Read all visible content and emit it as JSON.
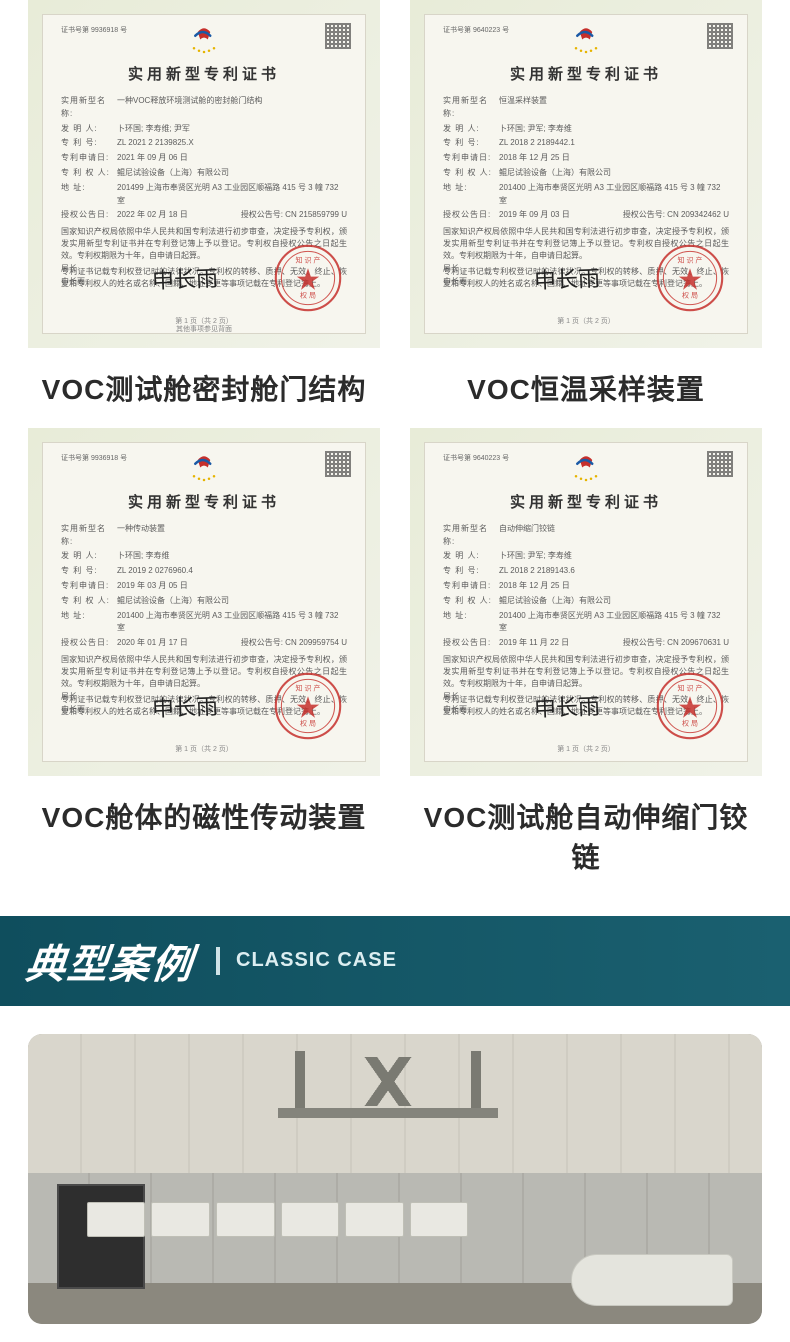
{
  "certs": [
    {
      "serial": "证书号第 9936918 号",
      "title": "实用新型专利证书",
      "name": "一种VOC释放环境测试舱的密封舱门结构",
      "inventor": "卜环国; 李寿维; 尹军",
      "patent_no": "ZL 2021 2 2139825.X",
      "apply_date": "2021 年 09 月 06 日",
      "owner": "鲲尼试验设备（上海）有限公司",
      "address": "201499  上海市奉贤区光明 A3 工业园区顺福路 415 号 3 幢 732 室",
      "grant_date": "2022 年 02 月 18 日",
      "grant_no": "CN 215859799 U",
      "body1": "国家知识产权局依照中华人民共和国专利法进行初步审查，决定授予专利权，颁发实用新型专利证书并在专利登记簿上予以登记。专利权自授权公告之日起生效。专利权期限为十年，自申请日起算。",
      "body2": "专利证书记载专利权登记时的法律状况。专利权的转移、质押、无效、终止、恢复和专利权人的姓名或名称、国籍、地址变更等事项记载在专利登记簿上。",
      "sig_label1": "局长",
      "sig_label2": "申长雨",
      "signature": "申长雨",
      "page": "第 1 页（共 2 页）",
      "footnote": "其他事项参见背面",
      "caption": "VOC测试舱密封舱门结构"
    },
    {
      "serial": "证书号第 9640223 号",
      "title": "实用新型专利证书",
      "name": "恒温采样装置",
      "inventor": "卜环国; 尹军; 李寿维",
      "patent_no": "ZL 2018 2 2189442.1",
      "apply_date": "2018 年 12 月 25 日",
      "owner": "鲲尼试验设备（上海）有限公司",
      "address": "201400  上海市奉贤区光明 A3 工业园区顺福路 415 号 3 幢 732 室",
      "grant_date": "2019 年 09 月 03 日",
      "grant_no": "CN 209342462 U",
      "body1": "国家知识产权局依照中华人民共和国专利法进行初步审查，决定授予专利权，颁发实用新型专利证书并在专利登记簿上予以登记。专利权自授权公告之日起生效。专利权期限为十年，自申请日起算。",
      "body2": "专利证书记载专利权登记时的法律状况。专利权的转移、质押、无效、终止、恢复和专利权人的姓名或名称、国籍、地址变更等事项记载在专利登记簿上。",
      "sig_label1": "局长",
      "sig_label2": "申长雨",
      "signature": "申长雨",
      "page": "第 1 页（共 2 页）",
      "footnote": "",
      "caption": "VOC恒温采样装置"
    },
    {
      "serial": "证书号第 9936918 号",
      "title": "实用新型专利证书",
      "name": "一种传动装置",
      "inventor": "卜环国; 李寿维",
      "patent_no": "ZL 2019 2 0276960.4",
      "apply_date": "2019 年 03 月 05 日",
      "owner": "鲲尼试验设备（上海）有限公司",
      "address": "201400  上海市奉贤区光明 A3 工业园区顺福路 415 号 3 幢 732 室",
      "grant_date": "2020 年 01 月 17 日",
      "grant_no": "CN 209959754 U",
      "body1": "国家知识产权局依照中华人民共和国专利法进行初步审查，决定授予专利权，颁发实用新型专利证书并在专利登记簿上予以登记。专利权自授权公告之日起生效。专利权期限为十年，自申请日起算。",
      "body2": "专利证书记载专利权登记时的法律状况。专利权的转移、质押、无效、终止、恢复和专利权人的姓名或名称、国籍、地址变更等事项记载在专利登记簿上。",
      "sig_label1": "局长",
      "sig_label2": "申长雨",
      "signature": "申长雨",
      "page": "第 1 页（共 2 页）",
      "footnote": "",
      "caption": "VOC舱体的磁性传动装置"
    },
    {
      "serial": "证书号第 9640223 号",
      "title": "实用新型专利证书",
      "name": "自动伸缩门铰链",
      "inventor": "卜环国; 尹军; 李寿维",
      "patent_no": "ZL 2018 2 2189143.6",
      "apply_date": "2018 年 12 月 25 日",
      "owner": "鲲尼试验设备（上海）有限公司",
      "address": "201400  上海市奉贤区光明 A3 工业园区顺福路 415 号 3 幢 732 室",
      "grant_date": "2019 年 11 月 22 日",
      "grant_no": "CN 209670631 U",
      "body1": "国家知识产权局依照中华人民共和国专利法进行初步审查，决定授予专利权，颁发实用新型专利证书并在专利登记簿上予以登记。专利权自授权公告之日起生效。专利权期限为十年，自申请日起算。",
      "body2": "专利证书记载专利权登记时的法律状况。专利权的转移、质押、无效、终止、恢复和专利权人的姓名或名称、国籍、地址变更等事项记载在专利登记簿上。",
      "sig_label1": "局长",
      "sig_label2": "申长雨",
      "signature": "申长雨",
      "page": "第 1 页（共 2 页）",
      "footnote": "",
      "caption": "VOC测试舱自动伸缩门铰链"
    }
  ],
  "labels": {
    "name": "实用新型名称:",
    "inventor": "发    明    人:",
    "patent_no": "专    利    号:",
    "apply_date": "专利申请日:",
    "owner": "专 利 权 人:",
    "address": "地          址:",
    "grant_date": "授权公告日:",
    "grant_no": "授权公告号:"
  },
  "section": {
    "cn": "典型案例",
    "en": "CLASSIC CASE"
  },
  "colors": {
    "banner_bg": "#165a6b",
    "caption_color": "#2b2b2b",
    "stamp_red": "#c62f2b"
  }
}
